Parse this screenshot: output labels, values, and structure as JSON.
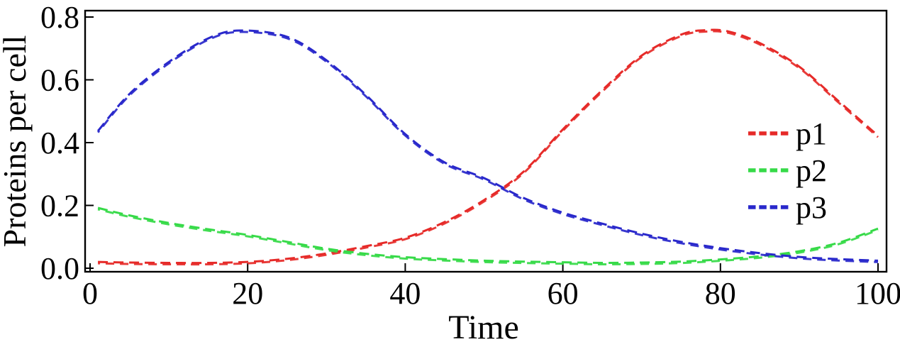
{
  "figure": {
    "background": "#ffffff",
    "frame_color": "#000000"
  },
  "chart_data": {
    "type": "line",
    "title": "",
    "xlabel": "Time",
    "ylabel": "Proteins per cell",
    "xlim": [
      0,
      100
    ],
    "ylim": [
      0,
      0.8
    ],
    "x_ticks": [
      0,
      20,
      40,
      60,
      80,
      100
    ],
    "y_ticks": [
      0.0,
      0.2,
      0.4,
      0.6,
      0.8
    ],
    "y_tick_labels": [
      "0.0",
      "0.2",
      "0.4",
      "0.6",
      "0.8"
    ],
    "grid": false,
    "frame": true,
    "line_style": "dashed",
    "legend_position": "inside-right",
    "series": [
      {
        "name": "p1",
        "color": "#e62a28",
        "x": [
          1,
          5,
          10,
          15,
          20,
          25,
          30,
          35,
          40,
          45,
          50,
          55,
          60,
          65,
          70,
          75,
          78,
          81,
          85,
          90,
          95,
          100
        ],
        "y": [
          0.018,
          0.016,
          0.015,
          0.015,
          0.018,
          0.028,
          0.045,
          0.068,
          0.095,
          0.145,
          0.215,
          0.305,
          0.44,
          0.565,
          0.675,
          0.742,
          0.756,
          0.752,
          0.715,
          0.64,
          0.53,
          0.42
        ]
      },
      {
        "name": "p2",
        "color": "#36da48",
        "x": [
          1,
          5,
          10,
          15,
          20,
          25,
          30,
          35,
          40,
          45,
          50,
          55,
          60,
          65,
          70,
          75,
          80,
          85,
          90,
          95,
          100
        ],
        "y": [
          0.19,
          0.166,
          0.142,
          0.122,
          0.104,
          0.082,
          0.06,
          0.044,
          0.033,
          0.027,
          0.022,
          0.019,
          0.017,
          0.015,
          0.016,
          0.019,
          0.026,
          0.036,
          0.052,
          0.079,
          0.124
        ]
      },
      {
        "name": "p3",
        "color": "#2928cb",
        "x": [
          1,
          5,
          10,
          15,
          19,
          25,
          30,
          35,
          40,
          45,
          50,
          55,
          60,
          65,
          70,
          75,
          80,
          85,
          90,
          95,
          100
        ],
        "y": [
          0.435,
          0.553,
          0.655,
          0.73,
          0.755,
          0.735,
          0.66,
          0.55,
          0.425,
          0.335,
          0.285,
          0.222,
          0.175,
          0.14,
          0.108,
          0.082,
          0.062,
          0.046,
          0.034,
          0.027,
          0.022
        ]
      }
    ]
  }
}
